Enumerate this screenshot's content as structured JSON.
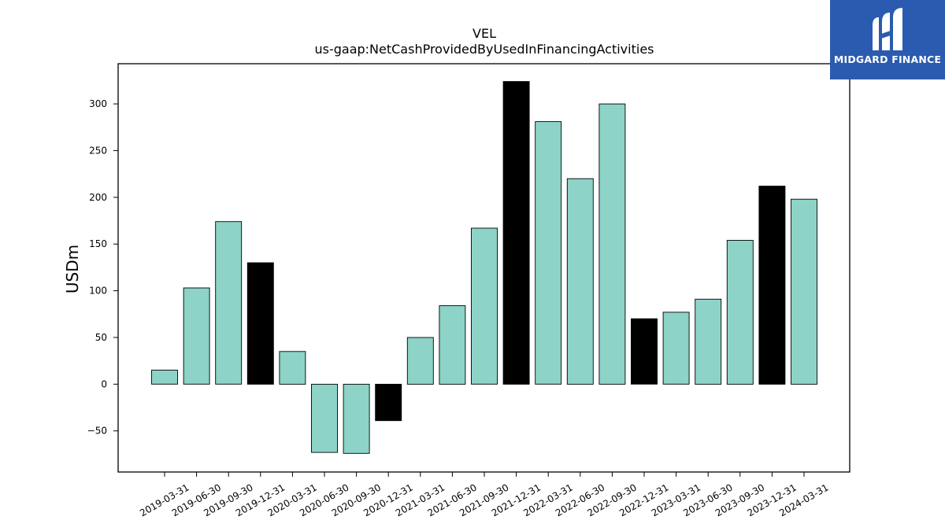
{
  "chart_data": {
    "type": "bar",
    "title": "VEL",
    "subtitle": "us-gaap:NetCashProvidedByUsedInFinancingActivities",
    "ylabel": "USDm",
    "xlabel": "",
    "ylim": [
      -94,
      343
    ],
    "yticks": [
      -50,
      0,
      50,
      100,
      150,
      200,
      250,
      300
    ],
    "ytick_labels": [
      "−50",
      "0",
      "50",
      "100",
      "150",
      "200",
      "250",
      "300"
    ],
    "categories": [
      "2019-03-31",
      "2019-06-30",
      "2019-09-30",
      "2019-12-31",
      "2020-03-31",
      "2020-06-30",
      "2020-09-30",
      "2020-12-31",
      "2021-03-31",
      "2021-06-30",
      "2021-09-30",
      "2021-12-31",
      "2022-03-31",
      "2022-06-30",
      "2022-09-30",
      "2022-12-31",
      "2023-03-31",
      "2023-06-30",
      "2023-09-30",
      "2023-12-31",
      "2024-03-31"
    ],
    "values": [
      15,
      103,
      174,
      130,
      35,
      -73,
      -74,
      -39,
      50,
      84,
      167,
      324,
      281,
      220,
      300,
      70,
      77,
      91,
      154,
      212,
      198
    ],
    "year_end": [
      false,
      false,
      false,
      true,
      false,
      false,
      false,
      true,
      false,
      false,
      false,
      true,
      false,
      false,
      false,
      true,
      false,
      false,
      false,
      true,
      false
    ],
    "colors": {
      "quarter": "#8dd3c7",
      "year_end": "#000000",
      "edge": "#000000"
    },
    "grid": false,
    "legend": "none"
  },
  "logo": {
    "text": "MIDGARD FINANCE",
    "color": "#2a5bb0"
  }
}
